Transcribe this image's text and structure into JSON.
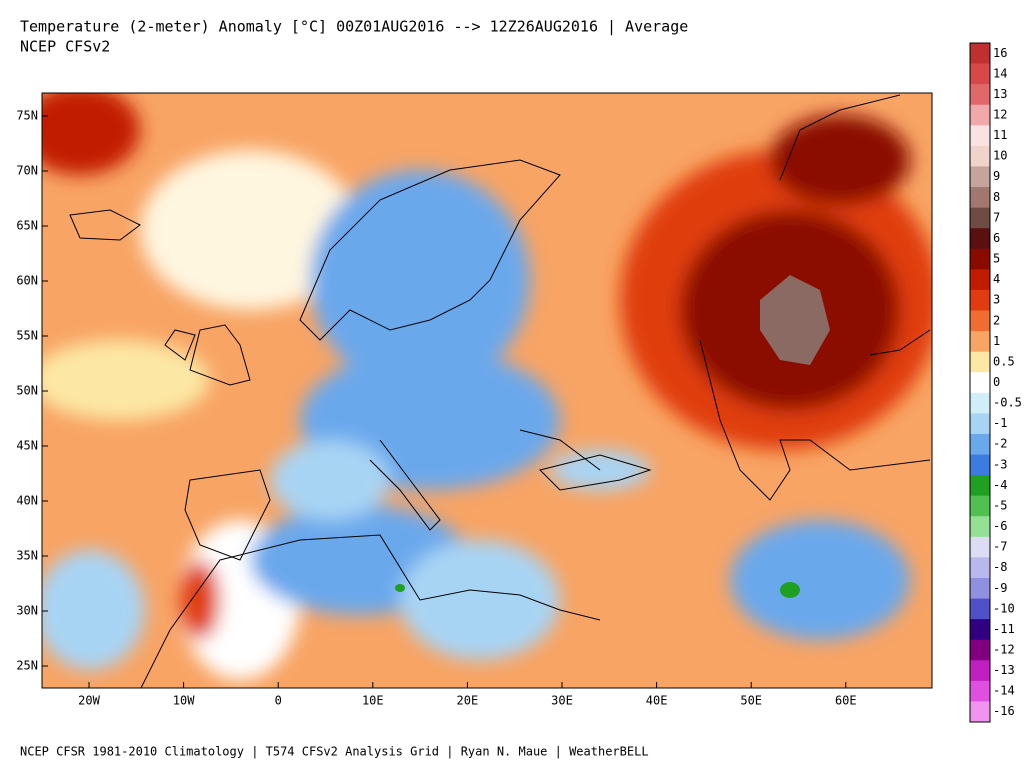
{
  "header": {
    "title": "Temperature (2-meter) Anomaly  [°C] 00Z01AUG2016 --> 12Z26AUG2016 | Average",
    "model": "NCEP CFSv2"
  },
  "map": {
    "lat_labels": [
      "75N",
      "70N",
      "65N",
      "60N",
      "55N",
      "50N",
      "45N",
      "40N",
      "35N",
      "30N",
      "25N"
    ],
    "lon_labels": [
      "20W",
      "10W",
      "0",
      "10E",
      "20E",
      "30E",
      "40E",
      "50E",
      "60E"
    ]
  },
  "colorbar": [
    {
      "label": "16",
      "color": "#c03030"
    },
    {
      "label": "14",
      "color": "#d84848"
    },
    {
      "label": "13",
      "color": "#e06868"
    },
    {
      "label": "12",
      "color": "#f0a8a8"
    },
    {
      "label": "11",
      "color": "#fbe2e2"
    },
    {
      "label": "10",
      "color": "#f0d4cc"
    },
    {
      "label": "9",
      "color": "#c4a49c"
    },
    {
      "label": "8",
      "color": "#a07870"
    },
    {
      "label": "7",
      "color": "#6e4c44"
    },
    {
      "label": "6",
      "color": "#5a1010"
    },
    {
      "label": "5",
      "color": "#8b0a00"
    },
    {
      "label": "4",
      "color": "#c21c00"
    },
    {
      "label": "3",
      "color": "#e03c10"
    },
    {
      "label": "2",
      "color": "#f06c30"
    },
    {
      "label": "1",
      "color": "#f8a464"
    },
    {
      "label": "0.5",
      "color": "#fce8a4"
    },
    {
      "label": "0",
      "color": "#ffffff"
    },
    {
      "label": "-0.5",
      "color": "#d0eef8"
    },
    {
      "label": "-1",
      "color": "#a8d4f4"
    },
    {
      "label": "-2",
      "color": "#6aa8ec"
    },
    {
      "label": "-3",
      "color": "#3c7ce0"
    },
    {
      "label": "-4",
      "color": "#20a020"
    },
    {
      "label": "-5",
      "color": "#50c050"
    },
    {
      "label": "-6",
      "color": "#94e094"
    },
    {
      "label": "-7",
      "color": "#dcdcf4"
    },
    {
      "label": "-8",
      "color": "#b8b8ec"
    },
    {
      "label": "-9",
      "color": "#9090e0"
    },
    {
      "label": "-10",
      "color": "#5050c8"
    },
    {
      "label": "-11",
      "color": "#300080"
    },
    {
      "label": "-12",
      "color": "#800080"
    },
    {
      "label": "-13",
      "color": "#c020c0"
    },
    {
      "label": "-14",
      "color": "#e050e0"
    },
    {
      "label": "-16",
      "color": "#f094f0"
    }
  ],
  "footer": "NCEP CFSR 1981-2010 Climatology | T574 CFSv2 Analysis Grid | Ryan N. Maue | WeatherBELL"
}
